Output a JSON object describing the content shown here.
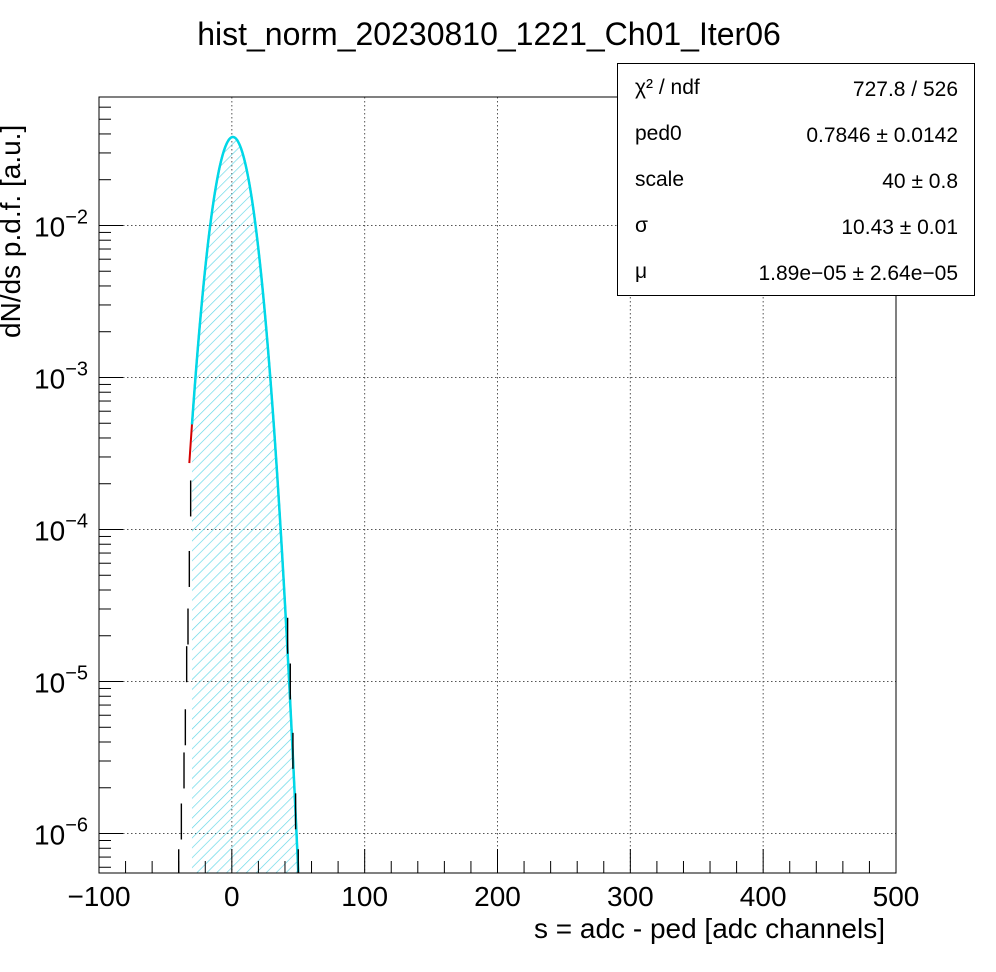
{
  "chart_data": {
    "type": "histogram",
    "title": "hist_norm_20230810_1221_Ch01_Iter06",
    "xlabel": "s = adc - ped [adc channels]",
    "ylabel": "dN/ds p.d.f. [a.u.]",
    "xlim": [
      -100,
      500
    ],
    "ylim": [
      5.5e-07,
      0.07
    ],
    "y_scale": "log",
    "grid": true,
    "x_ticks": [
      -100,
      0,
      100,
      200,
      300,
      400,
      500
    ],
    "x_tick_labels": [
      "−100",
      "0",
      "100",
      "200",
      "300",
      "400",
      "500"
    ],
    "y_ticks": [
      {
        "value": 1e-06,
        "base": "10",
        "exp": "−6"
      },
      {
        "value": 1e-05,
        "base": "10",
        "exp": "−5"
      },
      {
        "value": 0.0001,
        "base": "10",
        "exp": "−4"
      },
      {
        "value": 0.001,
        "base": "10",
        "exp": "−3"
      },
      {
        "value": 0.01,
        "base": "10",
        "exp": "−2"
      }
    ],
    "fit_function": {
      "shape": "gaussian",
      "mu": 0.78,
      "sigma": 10.43,
      "peak": 0.0382
    },
    "fit_range": [
      -30,
      50
    ],
    "colors": {
      "fit_curve": "#00d8e8",
      "fit_extension": "#d40000",
      "hatch": "#5fd6e6",
      "data": "#000000"
    },
    "hist_points": [
      {
        "x": -40,
        "y": 6e-07
      },
      {
        "x": -38,
        "y": 1.2e-06
      },
      {
        "x": -36,
        "y": 2.6e-06
      },
      {
        "x": -35,
        "y": 5e-06
      },
      {
        "x": -34,
        "y": 1.3e-05
      },
      {
        "x": -33,
        "y": 2.3e-05
      },
      {
        "x": -32,
        "y": 5.5e-05
      },
      {
        "x": -31,
        "y": 0.00016
      },
      {
        "x": 42,
        "y": 2e-05
      },
      {
        "x": 44,
        "y": 1e-05
      },
      {
        "x": 46,
        "y": 3.5e-06
      },
      {
        "x": 48,
        "y": 1.4e-06
      },
      {
        "x": 50,
        "y": 6e-07
      }
    ],
    "stats_box": [
      {
        "key_html": "χ² / ndf",
        "value": "727.8 / 526"
      },
      {
        "key_html": "ped0",
        "value": "0.7846 ± 0.0142"
      },
      {
        "key_html": "scale",
        "value": "40 ± 0.8"
      },
      {
        "key_html": "σ",
        "value": "10.43 ± 0.01"
      },
      {
        "key_html": "μ",
        "value": "1.89e−05 ± 2.64e−05"
      }
    ]
  }
}
